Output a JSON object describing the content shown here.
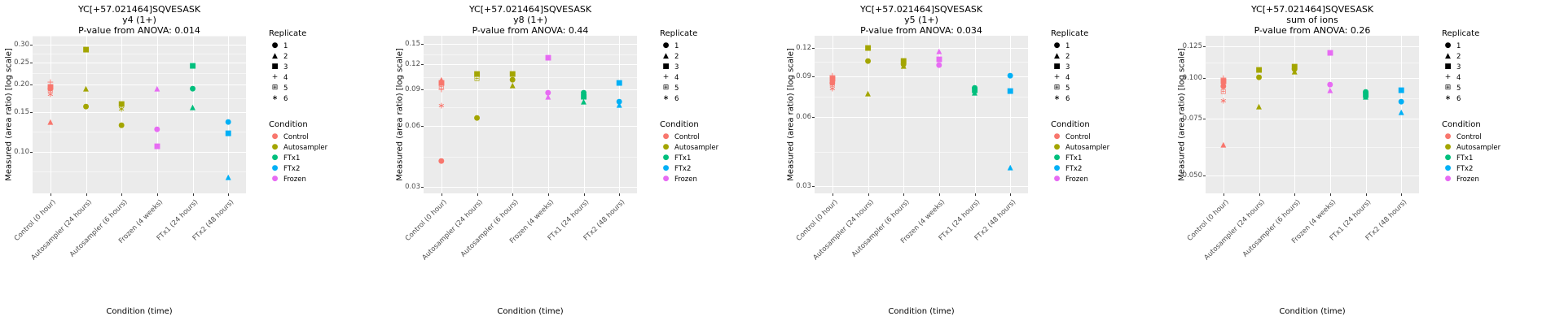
{
  "x_axis_label": "Condition (time)",
  "y_axis_label": "Measured (area ratio) [log scale]",
  "plot_background": "#EBEBEB",
  "legend": {
    "replicate_title": "Replicate",
    "replicates": [
      {
        "label": "1",
        "glyph": "●"
      },
      {
        "label": "2",
        "glyph": "▲"
      },
      {
        "label": "3",
        "glyph": "■"
      },
      {
        "label": "4",
        "glyph": "+"
      },
      {
        "label": "5",
        "glyph": "⊞"
      },
      {
        "label": "6",
        "glyph": "∗"
      }
    ],
    "condition_title": "Condition",
    "conditions": [
      {
        "label": "Control",
        "color": "#F8766D",
        "glyph": "●"
      },
      {
        "label": "Autosampler",
        "color": "#A3A500",
        "glyph": "●"
      },
      {
        "label": "FTx1",
        "color": "#00BF7D",
        "glyph": "●"
      },
      {
        "label": "FTx2",
        "color": "#00B0F6",
        "glyph": "●"
      },
      {
        "label": "Frozen",
        "color": "#E76BF3",
        "glyph": "●"
      }
    ]
  },
  "chart_data": [
    {
      "type": "scatter",
      "title": "YC[+57.021464]SQVESASK",
      "subtitle": "y4 (1+)",
      "anova_label": "P-value from ANOVA: 0.014",
      "xlabel": "Condition (time)",
      "ylabel": "Measured (area ratio) [log scale]",
      "y_scale": "log",
      "ylim": [
        0.065,
        0.33
      ],
      "yticks": [
        0.3,
        0.25,
        0.2,
        0.15,
        0.1
      ],
      "ytick_labels": [
        "0.30",
        "0.25",
        "0.20",
        "0.15",
        "0.10"
      ],
      "categories": [
        "Control (0 hour)",
        "Autosampler (24 hours)",
        "Autosampler (6 hours)",
        "Frozen (4 weeks)",
        "FTx1 (24 hours)",
        "FTx2 (48 hours)"
      ],
      "points": [
        {
          "category": "Control (0 hour)",
          "condition": "Control",
          "replicate": 4,
          "value": 0.205
        },
        {
          "category": "Control (0 hour)",
          "condition": "Control",
          "replicate": 3,
          "value": 0.193
        },
        {
          "category": "Control (0 hour)",
          "condition": "Control",
          "replicate": 1,
          "value": 0.19
        },
        {
          "category": "Control (0 hour)",
          "condition": "Control",
          "replicate": 5,
          "value": 0.187
        },
        {
          "category": "Control (0 hour)",
          "condition": "Control",
          "replicate": 6,
          "value": 0.18
        },
        {
          "category": "Control (0 hour)",
          "condition": "Control",
          "replicate": 2,
          "value": 0.135
        },
        {
          "category": "Autosampler (24 hours)",
          "condition": "Autosampler",
          "replicate": 3,
          "value": 0.285
        },
        {
          "category": "Autosampler (24 hours)",
          "condition": "Autosampler",
          "replicate": 2,
          "value": 0.19
        },
        {
          "category": "Autosampler (24 hours)",
          "condition": "Autosampler",
          "replicate": 1,
          "value": 0.158
        },
        {
          "category": "Autosampler (6 hours)",
          "condition": "Autosampler",
          "replicate": 3,
          "value": 0.162
        },
        {
          "category": "Autosampler (6 hours)",
          "condition": "Autosampler",
          "replicate": 6,
          "value": 0.155
        },
        {
          "category": "Autosampler (6 hours)",
          "condition": "Autosampler",
          "replicate": 1,
          "value": 0.13
        },
        {
          "category": "Frozen (4 weeks)",
          "condition": "Frozen",
          "replicate": 2,
          "value": 0.19
        },
        {
          "category": "Frozen (4 weeks)",
          "condition": "Frozen",
          "replicate": 1,
          "value": 0.125
        },
        {
          "category": "Frozen (4 weeks)",
          "condition": "Frozen",
          "replicate": 3,
          "value": 0.105
        },
        {
          "category": "FTx1 (24 hours)",
          "condition": "FTx1",
          "replicate": 3,
          "value": 0.24
        },
        {
          "category": "FTx1 (24 hours)",
          "condition": "FTx1",
          "replicate": 1,
          "value": 0.19
        },
        {
          "category": "FTx1 (24 hours)",
          "condition": "FTx1",
          "replicate": 2,
          "value": 0.157
        },
        {
          "category": "FTx2 (48 hours)",
          "condition": "FTx2",
          "replicate": 1,
          "value": 0.135
        },
        {
          "category": "FTx2 (48 hours)",
          "condition": "FTx2",
          "replicate": 3,
          "value": 0.12
        },
        {
          "category": "FTx2 (48 hours)",
          "condition": "FTx2",
          "replicate": 2,
          "value": 0.076
        }
      ]
    },
    {
      "type": "scatter",
      "title": "YC[+57.021464]SQVESASK",
      "subtitle": "y8 (1+)",
      "anova_label": "P-value from ANOVA: 0.44",
      "xlabel": "Condition (time)",
      "ylabel": "Measured (area ratio) [log scale]",
      "y_scale": "log",
      "ylim": [
        0.028,
        0.165
      ],
      "yticks": [
        0.15,
        0.12,
        0.09,
        0.06,
        0.03
      ],
      "ytick_labels": [
        "0.15",
        "0.12",
        "0.09",
        "0.06",
        "0.03"
      ],
      "categories": [
        "Control (0 hour)",
        "Autosampler (24 hours)",
        "Autosampler (6 hours)",
        "Frozen (4 weeks)",
        "FTx1 (24 hours)",
        "FTx2 (48 hours)"
      ],
      "points": [
        {
          "category": "Control (0 hour)",
          "condition": "Control",
          "replicate": 2,
          "value": 0.1
        },
        {
          "category": "Control (0 hour)",
          "condition": "Control",
          "replicate": 3,
          "value": 0.096
        },
        {
          "category": "Control (0 hour)",
          "condition": "Control",
          "replicate": 5,
          "value": 0.092
        },
        {
          "category": "Control (0 hour)",
          "condition": "Control",
          "replicate": 4,
          "value": 0.09
        },
        {
          "category": "Control (0 hour)",
          "condition": "Control",
          "replicate": 6,
          "value": 0.075
        },
        {
          "category": "Control (0 hour)",
          "condition": "Control",
          "replicate": 1,
          "value": 0.04
        },
        {
          "category": "Autosampler (24 hours)",
          "condition": "Autosampler",
          "replicate": 3,
          "value": 0.106
        },
        {
          "category": "Autosampler (24 hours)",
          "condition": "Autosampler",
          "replicate": 5,
          "value": 0.101
        },
        {
          "category": "Autosampler (24 hours)",
          "condition": "Autosampler",
          "replicate": 1,
          "value": 0.065
        },
        {
          "category": "Autosampler (6 hours)",
          "condition": "Autosampler",
          "replicate": 3,
          "value": 0.106
        },
        {
          "category": "Autosampler (6 hours)",
          "condition": "Autosampler",
          "replicate": 1,
          "value": 0.1
        },
        {
          "category": "Autosampler (6 hours)",
          "condition": "Autosampler",
          "replicate": 2,
          "value": 0.094
        },
        {
          "category": "Frozen (4 weeks)",
          "condition": "Frozen",
          "replicate": 3,
          "value": 0.128
        },
        {
          "category": "Frozen (4 weeks)",
          "condition": "Frozen",
          "replicate": 1,
          "value": 0.086
        },
        {
          "category": "Frozen (4 weeks)",
          "condition": "Frozen",
          "replicate": 2,
          "value": 0.082
        },
        {
          "category": "FTx1 (24 hours)",
          "condition": "FTx1",
          "replicate": 1,
          "value": 0.086
        },
        {
          "category": "FTx1 (24 hours)",
          "condition": "FTx1",
          "replicate": 3,
          "value": 0.082
        },
        {
          "category": "FTx1 (24 hours)",
          "condition": "FTx1",
          "replicate": 2,
          "value": 0.078
        },
        {
          "category": "FTx2 (48 hours)",
          "condition": "FTx2",
          "replicate": 3,
          "value": 0.096
        },
        {
          "category": "FTx2 (48 hours)",
          "condition": "FTx2",
          "replicate": 1,
          "value": 0.078
        },
        {
          "category": "FTx2 (48 hours)",
          "condition": "FTx2",
          "replicate": 2,
          "value": 0.075
        }
      ]
    },
    {
      "type": "scatter",
      "title": "YC[+57.021464]SQVESASK",
      "subtitle": "y5 (1+)",
      "anova_label": "P-value from ANOVA: 0.034",
      "xlabel": "Condition (time)",
      "ylabel": "Measured (area ratio) [log scale]",
      "y_scale": "log",
      "ylim": [
        0.028,
        0.135
      ],
      "yticks": [
        0.12,
        0.09,
        0.06,
        0.03
      ],
      "ytick_labels": [
        "0.12",
        "0.09",
        "0.06",
        "0.03"
      ],
      "categories": [
        "Control (0 hour)",
        "Autosampler (24 hours)",
        "Autosampler (6 hours)",
        "Frozen (4 weeks)",
        "FTx1 (24 hours)",
        "FTx2 (48 hours)"
      ],
      "points": [
        {
          "category": "Control (0 hour)",
          "condition": "Control",
          "replicate": 4,
          "value": 0.091
        },
        {
          "category": "Control (0 hour)",
          "condition": "Control",
          "replicate": 3,
          "value": 0.087
        },
        {
          "category": "Control (0 hour)",
          "condition": "Control",
          "replicate": 1,
          "value": 0.084
        },
        {
          "category": "Control (0 hour)",
          "condition": "Control",
          "replicate": 5,
          "value": 0.082
        },
        {
          "category": "Control (0 hour)",
          "condition": "Control",
          "replicate": 6,
          "value": 0.08
        },
        {
          "category": "Autosampler (24 hours)",
          "condition": "Autosampler",
          "replicate": 3,
          "value": 0.119
        },
        {
          "category": "Autosampler (24 hours)",
          "condition": "Autosampler",
          "replicate": 1,
          "value": 0.104
        },
        {
          "category": "Autosampler (24 hours)",
          "condition": "Autosampler",
          "replicate": 2,
          "value": 0.075
        },
        {
          "category": "Autosampler (6 hours)",
          "condition": "Autosampler",
          "replicate": 3,
          "value": 0.104
        },
        {
          "category": "Autosampler (6 hours)",
          "condition": "Autosampler",
          "replicate": 1,
          "value": 0.101
        },
        {
          "category": "Autosampler (6 hours)",
          "condition": "Autosampler",
          "replicate": 2,
          "value": 0.099
        },
        {
          "category": "Frozen (4 weeks)",
          "condition": "Frozen",
          "replicate": 2,
          "value": 0.115
        },
        {
          "category": "Frozen (4 weeks)",
          "condition": "Frozen",
          "replicate": 3,
          "value": 0.106
        },
        {
          "category": "Frozen (4 weeks)",
          "condition": "Frozen",
          "replicate": 1,
          "value": 0.1
        },
        {
          "category": "FTx1 (24 hours)",
          "condition": "FTx1",
          "replicate": 1,
          "value": 0.08
        },
        {
          "category": "FTx1 (24 hours)",
          "condition": "FTx1",
          "replicate": 3,
          "value": 0.078
        },
        {
          "category": "FTx1 (24 hours)",
          "condition": "FTx1",
          "replicate": 2,
          "value": 0.076
        },
        {
          "category": "FTx2 (48 hours)",
          "condition": "FTx2",
          "replicate": 1,
          "value": 0.09
        },
        {
          "category": "FTx2 (48 hours)",
          "condition": "FTx2",
          "replicate": 3,
          "value": 0.077
        },
        {
          "category": "FTx2 (48 hours)",
          "condition": "FTx2",
          "replicate": 2,
          "value": 0.036
        }
      ]
    },
    {
      "type": "scatter",
      "title": "YC[+57.021464]SQVESASK",
      "subtitle": "sum of ions",
      "anova_label": "P-value from ANOVA: 0.26",
      "xlabel": "Condition (time)",
      "ylabel": "Measured (area ratio) [log scale]",
      "y_scale": "log",
      "ylim": [
        0.044,
        0.135
      ],
      "yticks": [
        0.125,
        0.1,
        0.075,
        0.05
      ],
      "ytick_labels": [
        "0.125",
        "0.100",
        "0.075",
        "0.050"
      ],
      "categories": [
        "Control (0 hour)",
        "Autosampler (24 hours)",
        "Autosampler (6 hours)",
        "Frozen (4 weeks)",
        "FTx1 (24 hours)",
        "FTx2 (48 hours)"
      ],
      "points": [
        {
          "category": "Control (0 hour)",
          "condition": "Control",
          "replicate": 4,
          "value": 0.1
        },
        {
          "category": "Control (0 hour)",
          "condition": "Control",
          "replicate": 3,
          "value": 0.097
        },
        {
          "category": "Control (0 hour)",
          "condition": "Control",
          "replicate": 1,
          "value": 0.094
        },
        {
          "category": "Control (0 hour)",
          "condition": "Control",
          "replicate": 5,
          "value": 0.09
        },
        {
          "category": "Control (0 hour)",
          "condition": "Control",
          "replicate": 6,
          "value": 0.085
        },
        {
          "category": "Control (0 hour)",
          "condition": "Control",
          "replicate": 2,
          "value": 0.062
        },
        {
          "category": "Autosampler (24 hours)",
          "condition": "Autosampler",
          "replicate": 3,
          "value": 0.105
        },
        {
          "category": "Autosampler (24 hours)",
          "condition": "Autosampler",
          "replicate": 1,
          "value": 0.1
        },
        {
          "category": "Autosampler (24 hours)",
          "condition": "Autosampler",
          "replicate": 2,
          "value": 0.081
        },
        {
          "category": "Autosampler (6 hours)",
          "condition": "Autosampler",
          "replicate": 3,
          "value": 0.108
        },
        {
          "category": "Autosampler (6 hours)",
          "condition": "Autosampler",
          "replicate": 1,
          "value": 0.106
        },
        {
          "category": "Autosampler (6 hours)",
          "condition": "Autosampler",
          "replicate": 2,
          "value": 0.104
        },
        {
          "category": "Frozen (4 weeks)",
          "condition": "Frozen",
          "replicate": 3,
          "value": 0.119
        },
        {
          "category": "Frozen (4 weeks)",
          "condition": "Frozen",
          "replicate": 1,
          "value": 0.095
        },
        {
          "category": "Frozen (4 weeks)",
          "condition": "Frozen",
          "replicate": 2,
          "value": 0.091
        },
        {
          "category": "FTx1 (24 hours)",
          "condition": "FTx1",
          "replicate": 1,
          "value": 0.09
        },
        {
          "category": "FTx1 (24 hours)",
          "condition": "FTx1",
          "replicate": 3,
          "value": 0.088
        },
        {
          "category": "FTx1 (24 hours)",
          "condition": "FTx1",
          "replicate": 2,
          "value": 0.087
        },
        {
          "category": "FTx2 (48 hours)",
          "condition": "FTx2",
          "replicate": 3,
          "value": 0.091
        },
        {
          "category": "FTx2 (48 hours)",
          "condition": "FTx2",
          "replicate": 1,
          "value": 0.084
        },
        {
          "category": "FTx2 (48 hours)",
          "condition": "FTx2",
          "replicate": 2,
          "value": 0.078
        }
      ]
    }
  ]
}
